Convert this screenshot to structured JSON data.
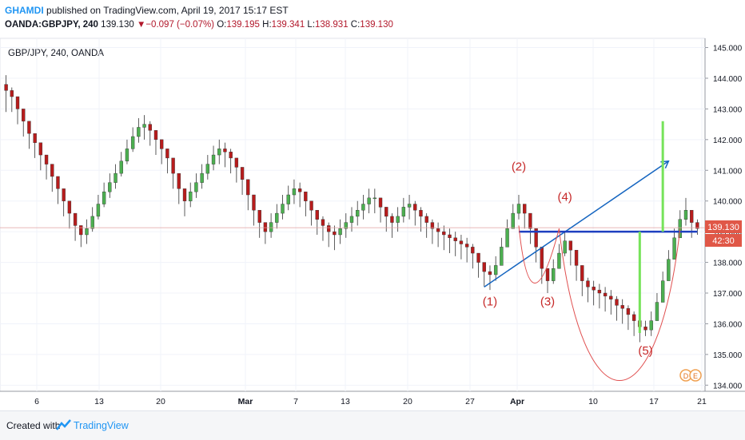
{
  "header": {
    "author": "GHAMDI",
    "published_text": "published on TradingView.com, April 19, 2017 15:17 EST",
    "symbol": "OANDA:GBPJPY, 240",
    "last_price": "139.130",
    "change": "−0.097 (−0.07%)",
    "open_label": "O:",
    "open": "139.195",
    "high_label": "H:",
    "high": "139.341",
    "low_label": "L:",
    "low": "138.931",
    "close_label": "C:",
    "close": "139.130"
  },
  "chart_title": "GBP/JPY, 240, OANDA",
  "price_badge": "139.130",
  "timer_badge": "42:30",
  "footer": {
    "created_with": "Created with",
    "brand": "TradingView"
  },
  "colors": {
    "up": "#4caf50",
    "down": "#b71c1c",
    "wick": "#333333",
    "trendline": "#1565c0",
    "neckline": "#1e3fbf",
    "curve": "#e05050",
    "target": "#76e35a",
    "label": "#c62828",
    "badge_bg": "#e05747"
  },
  "chart_data": {
    "type": "candlestick",
    "title": "GBP/JPY, 240, OANDA",
    "ylim": [
      133.8,
      145.3
    ],
    "y_ticks": [
      "134.000",
      "135.000",
      "136.000",
      "137.000",
      "138.000",
      "139.000",
      "140.000",
      "141.000",
      "142.000",
      "143.000",
      "144.000",
      "145.000"
    ],
    "x_ticks": [
      "6",
      "13",
      "20",
      "Mar",
      "7",
      "13",
      "20",
      "27",
      "Apr",
      "10",
      "17",
      "21"
    ],
    "series": [
      {
        "values": [
          143.6,
          143.4,
          143.0,
          142.6,
          142.2,
          141.9,
          141.5,
          141.2,
          140.8,
          140.4,
          140.0,
          139.6,
          139.2,
          138.9,
          139.1,
          139.5,
          139.9,
          140.3,
          140.6,
          140.9,
          141.3,
          141.7,
          142.1,
          142.4,
          142.5,
          142.3,
          142.0,
          141.7,
          141.4,
          140.9,
          140.4,
          140.0,
          140.3,
          140.6,
          140.9,
          141.2,
          141.5,
          141.7,
          141.6,
          141.4,
          141.1,
          140.7,
          140.2,
          139.7,
          139.3,
          139.0,
          139.3,
          139.6,
          139.9,
          140.2,
          140.4,
          140.3,
          140.0,
          139.7,
          139.4,
          139.2,
          139.0,
          138.9,
          139.1,
          139.3,
          139.5,
          139.7,
          139.9,
          140.1,
          140.1,
          139.8,
          139.5,
          139.3,
          139.5,
          139.8,
          139.9,
          139.7,
          139.5,
          139.3,
          139.1,
          139.0,
          138.9,
          138.8,
          138.7,
          138.6,
          138.5,
          138.3,
          138.0,
          137.7,
          137.6,
          137.9,
          138.5,
          139.1,
          139.6,
          139.9,
          139.6,
          139.1,
          138.5,
          137.8,
          137.4,
          137.8,
          138.3,
          138.7,
          138.4,
          137.9,
          137.4,
          137.2,
          137.1,
          137.0,
          136.9,
          136.8,
          136.6,
          136.5,
          136.3,
          136.1,
          135.9,
          135.8,
          136.1,
          136.7,
          137.4,
          138.1,
          138.8,
          139.4,
          139.7,
          139.3,
          139.1
        ],
        "highs": [
          144.1,
          143.7,
          143.3,
          142.9,
          142.5,
          142.2,
          141.8,
          141.5,
          141.1,
          140.7,
          140.3,
          139.9,
          139.5,
          139.2,
          139.4,
          139.8,
          140.2,
          140.6,
          140.9,
          141.2,
          141.6,
          142.0,
          142.4,
          142.7,
          142.8,
          142.6,
          142.3,
          142.0,
          141.7,
          141.2,
          140.7,
          140.3,
          140.6,
          140.9,
          141.2,
          141.5,
          141.8,
          142.0,
          141.9,
          141.7,
          141.4,
          141.0,
          140.5,
          140.0,
          139.6,
          139.3,
          139.6,
          139.9,
          140.2,
          140.5,
          140.7,
          140.6,
          140.3,
          140.0,
          139.7,
          139.5,
          139.3,
          139.2,
          139.4,
          139.6,
          139.8,
          140.0,
          140.2,
          140.4,
          140.4,
          140.1,
          139.8,
          139.6,
          139.8,
          140.1,
          140.2,
          140.0,
          139.8,
          139.6,
          139.4,
          139.3,
          139.2,
          139.1,
          139.0,
          138.9,
          138.8,
          138.6,
          138.3,
          138.0,
          137.9,
          138.2,
          138.8,
          139.4,
          139.9,
          140.2,
          139.9,
          139.4,
          138.8,
          138.1,
          137.7,
          138.1,
          138.6,
          139.0,
          138.7,
          138.2,
          137.7,
          137.5,
          137.4,
          137.3,
          137.2,
          137.1,
          136.9,
          136.8,
          136.6,
          136.4,
          136.2,
          136.1,
          136.4,
          137.0,
          137.7,
          138.4,
          139.1,
          139.7,
          140.1,
          139.6,
          139.4
        ],
        "lows": [
          142.9,
          142.9,
          142.5,
          142.1,
          141.7,
          141.4,
          141.0,
          140.7,
          140.3,
          139.9,
          139.5,
          139.1,
          138.7,
          138.5,
          138.6,
          139.0,
          139.4,
          139.8,
          140.1,
          140.4,
          140.8,
          141.2,
          141.6,
          141.9,
          142.0,
          141.8,
          141.5,
          141.2,
          140.9,
          140.4,
          139.9,
          139.5,
          139.8,
          140.1,
          140.4,
          140.7,
          141.0,
          141.2,
          141.1,
          140.9,
          140.6,
          140.2,
          139.7,
          139.2,
          138.8,
          138.6,
          138.8,
          139.1,
          139.4,
          139.7,
          139.9,
          139.8,
          139.5,
          139.2,
          138.9,
          138.7,
          138.5,
          138.4,
          138.6,
          138.8,
          139.0,
          139.2,
          139.4,
          139.6,
          139.6,
          139.3,
          139.0,
          138.8,
          139.0,
          139.3,
          139.4,
          139.2,
          139.0,
          138.8,
          138.6,
          138.5,
          138.4,
          138.3,
          138.2,
          138.1,
          138.0,
          137.8,
          137.5,
          137.2,
          137.1,
          137.4,
          138.0,
          138.6,
          139.1,
          139.4,
          139.1,
          138.6,
          138.0,
          137.3,
          137.0,
          137.3,
          137.8,
          138.2,
          137.9,
          137.4,
          136.9,
          136.7,
          136.6,
          136.5,
          136.4,
          136.3,
          136.1,
          136.0,
          135.8,
          135.6,
          135.4,
          135.6,
          135.6,
          136.2,
          136.9,
          137.6,
          138.3,
          138.9,
          139.2,
          138.8,
          138.9
        ]
      }
    ],
    "annotations": [
      {
        "text": "(1)",
        "x_index": 84,
        "y": 136.6
      },
      {
        "text": "(2)",
        "x_index": 89,
        "y": 141.0
      },
      {
        "text": "(3)",
        "x_index": 94,
        "y": 136.6
      },
      {
        "text": "(4)",
        "x_index": 97,
        "y": 140.0
      },
      {
        "text": "(5)",
        "x_index": 111,
        "y": 135.0
      }
    ],
    "current_price": 139.13
  }
}
